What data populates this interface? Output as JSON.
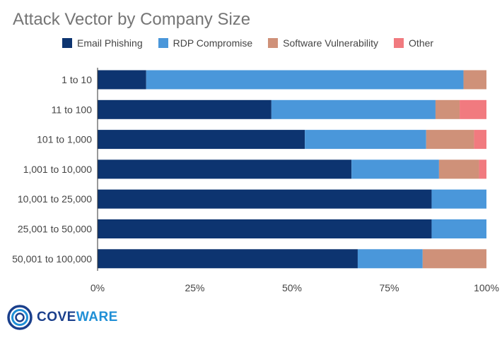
{
  "chart_data": {
    "type": "bar",
    "orientation": "horizontal",
    "stacked": true,
    "title": "Attack Vector by Company Size",
    "categories": [
      "1 to 10",
      "11 to 100",
      "101 to 1,000",
      "1,001 to 10,000",
      "10,001 to 25,000",
      "25,001 to 50,000",
      "50,001 to 100,000"
    ],
    "series": [
      {
        "name": "Email Phishing",
        "color": "#0d3470",
        "values": [
          12.5,
          44.7,
          53.3,
          65.3,
          85.9,
          85.9,
          66.9
        ]
      },
      {
        "name": "RDP Compromise",
        "color": "#4a97da",
        "values": [
          81.6,
          42.2,
          31.2,
          22.5,
          14.1,
          14.1,
          16.7
        ]
      },
      {
        "name": "Software Vulnerability",
        "color": "#cf9179",
        "values": [
          5.9,
          6.2,
          12.3,
          10.3,
          0,
          0,
          16.4
        ]
      },
      {
        "name": "Other",
        "color": "#f17a7f",
        "values": [
          0,
          6.9,
          3.2,
          1.9,
          0,
          0,
          0
        ]
      }
    ],
    "xlim": [
      0,
      100
    ],
    "xticks": [
      "0%",
      "25%",
      "50%",
      "75%",
      "100%"
    ],
    "legend_position": "top",
    "grid": false
  },
  "logo": {
    "text_part1": "COVE",
    "text_part2": "WARE"
  }
}
